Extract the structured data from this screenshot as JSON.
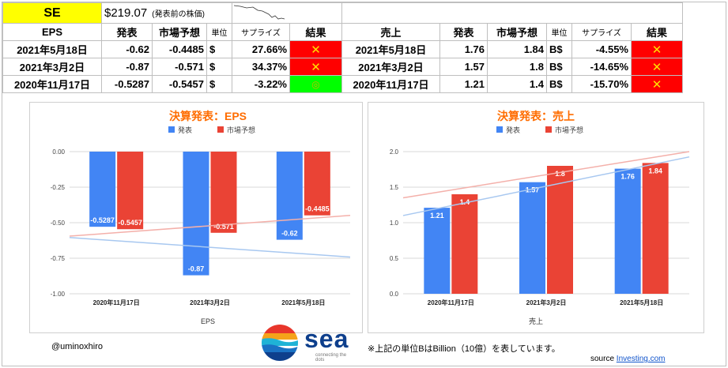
{
  "header": {
    "ticker": "SE",
    "price": "$219.07",
    "price_note": "(発表前の株価)"
  },
  "eps_table": {
    "col_metric": "EPS",
    "col_actual": "発表",
    "col_forecast": "市場予想",
    "col_unit": "単位",
    "col_surprise": "サプライズ",
    "col_result": "結果",
    "rows": [
      {
        "date": "2021年5月18日",
        "actual": "-0.62",
        "forecast": "-0.4485",
        "unit": "$",
        "surprise": "27.66%",
        "result": "✕",
        "result_status": "miss"
      },
      {
        "date": "2021年3月2日",
        "actual": "-0.87",
        "forecast": "-0.571",
        "unit": "$",
        "surprise": "34.37%",
        "result": "✕",
        "result_status": "miss"
      },
      {
        "date": "2020年11月17日",
        "actual": "-0.5287",
        "forecast": "-0.5457",
        "unit": "$",
        "surprise": "-3.22%",
        "result": "◎",
        "result_status": "beat"
      }
    ]
  },
  "rev_table": {
    "col_metric": "売上",
    "col_actual": "発表",
    "col_forecast": "市場予想",
    "col_unit": "単位",
    "col_surprise": "サプライズ",
    "col_result": "結果",
    "rows": [
      {
        "date": "2021年5月18日",
        "actual": "1.76",
        "forecast": "1.84",
        "unit": "B$",
        "surprise": "-4.55%",
        "result": "✕",
        "result_status": "miss"
      },
      {
        "date": "2021年3月2日",
        "actual": "1.57",
        "forecast": "1.8",
        "unit": "B$",
        "surprise": "-14.65%",
        "result": "✕",
        "result_status": "miss"
      },
      {
        "date": "2020年11月17日",
        "actual": "1.21",
        "forecast": "1.4",
        "unit": "B$",
        "surprise": "-15.70%",
        "result": "✕",
        "result_status": "miss"
      }
    ]
  },
  "colors": {
    "actual": "#4285f4",
    "forecast": "#ea4335",
    "title": "#ff6d01",
    "miss": "#ff0000",
    "beat": "#00ff00"
  },
  "chart_data": [
    {
      "type": "bar",
      "title": "決算発表：EPS",
      "xlabel": "EPS",
      "ylabel": "",
      "categories": [
        "2020年11月17日",
        "2021年3月2日",
        "2021年5月18日"
      ],
      "series": [
        {
          "name": "発表",
          "values": [
            -0.5287,
            -0.87,
            -0.62
          ],
          "labels": [
            "-0.5287",
            "-0.87",
            "-0.62"
          ]
        },
        {
          "name": "市場予想",
          "values": [
            -0.5457,
            -0.571,
            -0.4485
          ],
          "labels": [
            "-0.5457",
            "-0.571",
            "-0.4485"
          ]
        }
      ],
      "ylim": [
        -1.0,
        0.0
      ],
      "yticks": [
        "0.00",
        "-0.25",
        "-0.50",
        "-0.75",
        "-1.00"
      ],
      "ytick_values": [
        0,
        -0.25,
        -0.5,
        -0.75,
        -1.0
      ],
      "trendlines": true,
      "legend": "top",
      "grid": true
    },
    {
      "type": "bar",
      "title": "決算発表：売上",
      "xlabel": "売上",
      "ylabel": "",
      "categories": [
        "2020年11月17日",
        "2021年3月2日",
        "2021年5月18日"
      ],
      "series": [
        {
          "name": "発表",
          "values": [
            1.21,
            1.57,
            1.76
          ],
          "labels": [
            "1.21",
            "1.57",
            "1.76"
          ]
        },
        {
          "name": "市場予想",
          "values": [
            1.4,
            1.8,
            1.84
          ],
          "labels": [
            "1.4",
            "1.8",
            "1.84"
          ]
        }
      ],
      "ylim": [
        0.0,
        2.0
      ],
      "yticks": [
        "2.0",
        "1.5",
        "1.0",
        "0.5",
        "0.0"
      ],
      "ytick_values": [
        2.0,
        1.5,
        1.0,
        0.5,
        0.0
      ],
      "trendlines": true,
      "legend": "top",
      "grid": true
    }
  ],
  "footer": {
    "handle": "@uminoxhiro",
    "logo_text": "sea",
    "logo_tagline": "connecting the dots",
    "note": "※上記の単位BはBillion（10億）を表しています。",
    "source_label": "source",
    "source_link": "Investing.com"
  }
}
